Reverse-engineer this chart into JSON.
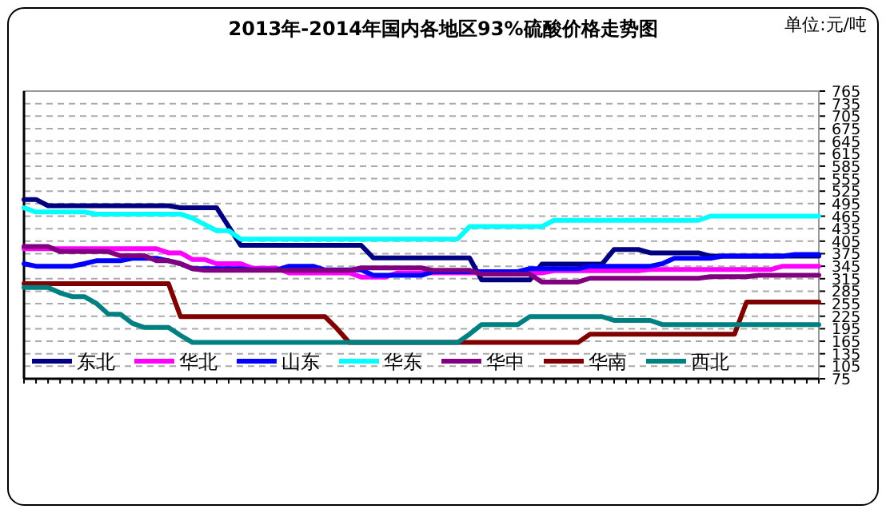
{
  "chart_data": {
    "type": "line",
    "title": "2013年-2014年国内各地区93%硫酸价格走势图",
    "annotations": [
      "单位:元/吨"
    ],
    "categories": [
      null,
      null,
      null,
      null,
      null,
      null,
      null,
      null,
      null,
      null,
      null,
      null,
      null,
      null,
      null,
      null,
      null,
      null,
      null,
      null,
      null,
      null,
      null,
      null,
      null,
      null,
      null,
      null,
      null,
      null,
      null,
      null,
      null,
      null,
      null,
      null,
      null,
      null,
      null,
      null,
      null,
      null,
      null,
      null,
      null,
      null,
      null,
      null,
      null,
      null,
      null,
      null,
      null,
      null,
      null,
      null,
      null,
      null,
      null,
      null,
      null,
      null,
      null,
      null,
      null,
      null,
      null
    ],
    "ylim": [
      75,
      765
    ],
    "yticks": [
      75,
      105,
      135,
      165,
      195,
      225,
      255,
      285,
      315,
      345,
      375,
      405,
      435,
      465,
      495,
      525,
      555,
      585,
      615,
      645,
      675,
      705,
      735,
      765
    ],
    "grid": "y",
    "legend": "bottom",
    "line_style": "solid",
    "marker": "none",
    "series": [
      {
        "name": "东北",
        "color": "#000080",
        "values": [
          505,
          505,
          490,
          490,
          490,
          490,
          490,
          490,
          490,
          490,
          490,
          490,
          490,
          485,
          485,
          485,
          485,
          440,
          395,
          395,
          395,
          395,
          395,
          395,
          395,
          395,
          395,
          395,
          395,
          365,
          365,
          365,
          365,
          365,
          365,
          365,
          365,
          365,
          312,
          312,
          312,
          312,
          312,
          350,
          350,
          350,
          350,
          350,
          350,
          385,
          385,
          385,
          377,
          377,
          377,
          377,
          377,
          369,
          369,
          369,
          369,
          369,
          369,
          369,
          369,
          369,
          369
        ]
      },
      {
        "name": "华北",
        "color": "#ff00ff",
        "values": [
          387,
          387,
          387,
          387,
          387,
          387,
          387,
          387,
          387,
          387,
          387,
          387,
          377,
          377,
          361,
          361,
          351,
          351,
          351,
          340,
          340,
          340,
          329,
          329,
          329,
          329,
          329,
          329,
          319,
          319,
          319,
          329,
          329,
          329,
          329,
          329,
          329,
          329,
          329,
          329,
          329,
          329,
          329,
          329,
          334,
          334,
          334,
          334,
          334,
          334,
          334,
          334,
          337,
          337,
          337,
          337,
          337,
          337,
          337,
          337,
          337,
          337,
          337,
          345,
          345,
          345,
          345
        ]
      },
      {
        "name": "山东",
        "color": "#0000ff",
        "values": [
          351,
          345,
          345,
          345,
          345,
          351,
          358,
          358,
          358,
          364,
          364,
          364,
          358,
          351,
          339,
          339,
          339,
          339,
          339,
          336,
          336,
          336,
          345,
          345,
          345,
          336,
          336,
          336,
          336,
          323,
          323,
          323,
          323,
          323,
          332,
          332,
          332,
          332,
          332,
          332,
          332,
          332,
          339,
          339,
          339,
          339,
          339,
          345,
          345,
          345,
          345,
          345,
          345,
          351,
          364,
          364,
          364,
          364,
          369,
          369,
          369,
          369,
          369,
          369,
          373,
          373,
          373
        ]
      },
      {
        "name": "华东",
        "color": "#00ffff",
        "values": [
          485,
          475,
          475,
          475,
          475,
          475,
          470,
          470,
          470,
          470,
          470,
          470,
          470,
          470,
          460,
          445,
          430,
          430,
          410,
          410,
          410,
          410,
          410,
          410,
          410,
          410,
          410,
          410,
          410,
          410,
          410,
          410,
          410,
          410,
          410,
          410,
          410,
          440,
          440,
          440,
          440,
          440,
          440,
          440,
          455,
          455,
          455,
          455,
          455,
          455,
          455,
          455,
          455,
          455,
          455,
          455,
          455,
          465,
          465,
          465,
          465,
          465,
          465,
          465,
          465,
          465,
          465
        ]
      },
      {
        "name": "华中",
        "color": "#800080",
        "values": [
          392,
          392,
          392,
          380,
          380,
          380,
          380,
          380,
          370,
          370,
          370,
          358,
          358,
          351,
          339,
          335,
          335,
          335,
          335,
          335,
          335,
          335,
          335,
          335,
          335,
          335,
          335,
          335,
          341,
          341,
          341,
          341,
          341,
          341,
          335,
          335,
          335,
          335,
          326,
          326,
          326,
          326,
          326,
          307,
          307,
          307,
          307,
          316,
          316,
          316,
          316,
          316,
          316,
          316,
          316,
          316,
          316,
          320,
          320,
          320,
          320,
          323,
          323,
          323,
          323,
          323,
          323
        ]
      },
      {
        "name": "华南",
        "color": "#800000",
        "values": [
          303,
          303,
          303,
          303,
          303,
          303,
          303,
          303,
          303,
          303,
          303,
          303,
          303,
          224,
          224,
          224,
          224,
          224,
          224,
          224,
          224,
          224,
          224,
          224,
          224,
          224,
          195,
          162,
          162,
          162,
          162,
          162,
          162,
          162,
          162,
          162,
          162,
          162,
          162,
          162,
          162,
          162,
          162,
          162,
          162,
          162,
          162,
          182,
          182,
          182,
          182,
          182,
          182,
          182,
          182,
          182,
          182,
          182,
          182,
          182,
          259,
          259,
          259,
          259,
          259,
          259,
          259
        ]
      },
      {
        "name": "西北",
        "color": "#008080",
        "values": [
          294,
          294,
          294,
          281,
          272,
          272,
          256,
          230,
          230,
          208,
          198,
          198,
          198,
          179,
          162,
          162,
          162,
          162,
          162,
          162,
          162,
          162,
          162,
          162,
          162,
          162,
          162,
          162,
          162,
          162,
          162,
          162,
          162,
          162,
          162,
          162,
          162,
          182,
          205,
          205,
          205,
          205,
          224,
          224,
          224,
          224,
          224,
          224,
          224,
          215,
          215,
          215,
          215,
          205,
          205,
          205,
          205,
          205,
          205,
          205,
          205,
          205,
          205,
          205,
          205,
          205,
          205
        ]
      }
    ]
  }
}
